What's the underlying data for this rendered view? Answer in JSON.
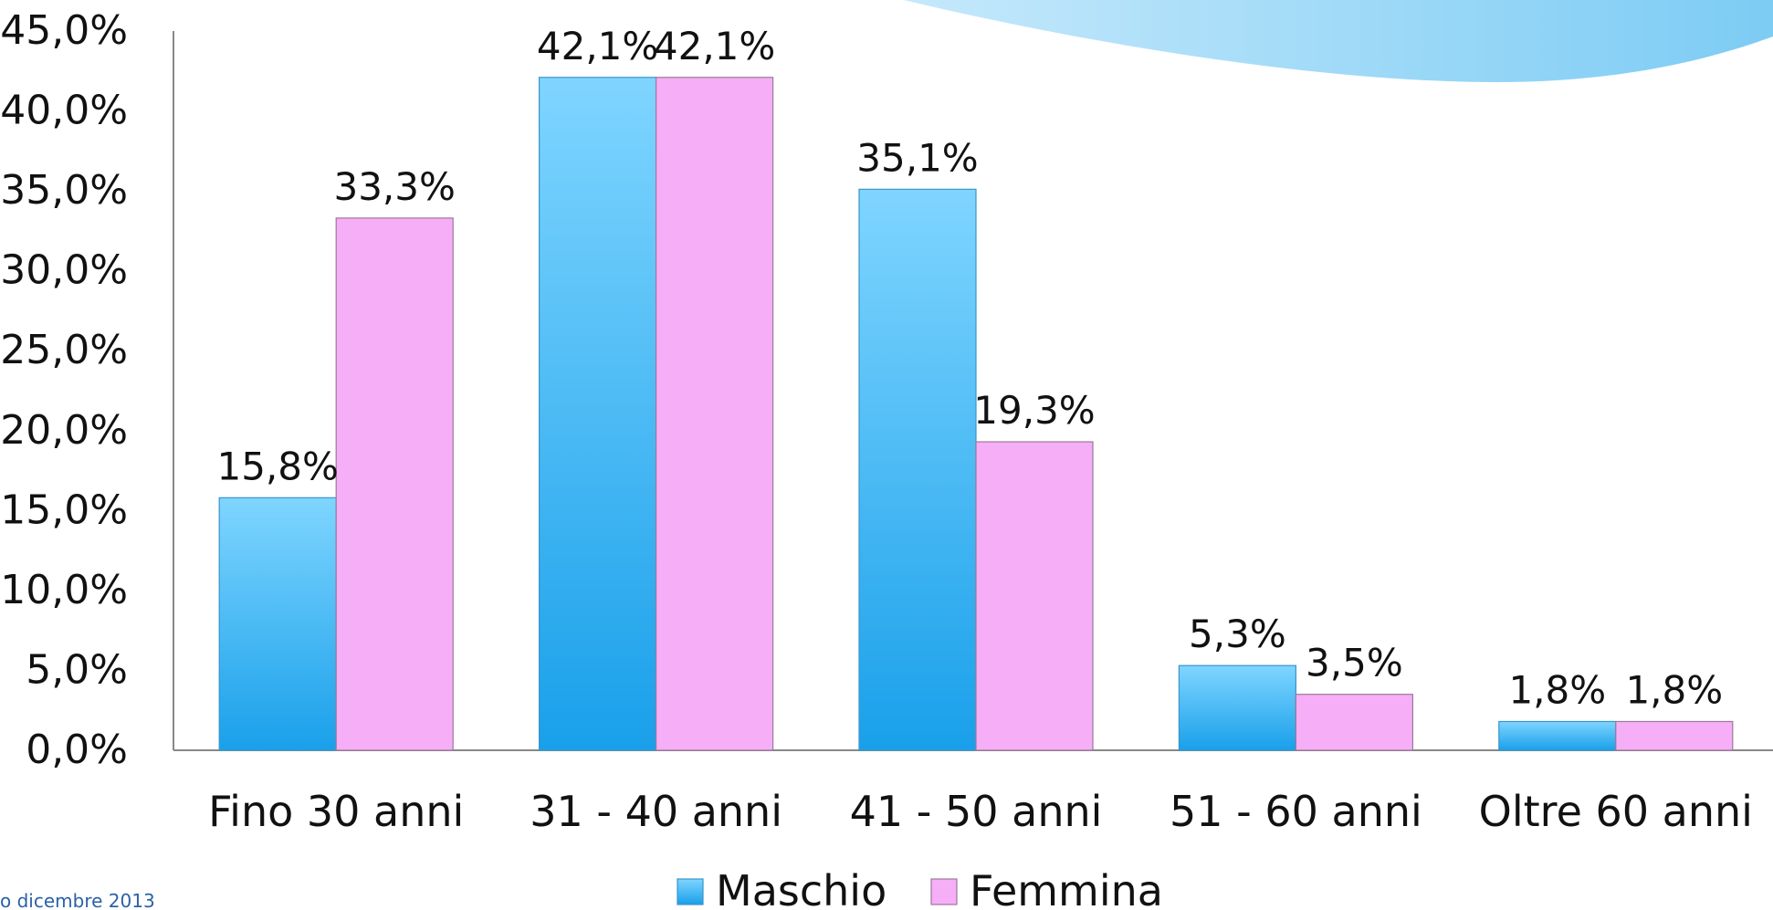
{
  "chart_data": {
    "type": "bar",
    "title": "",
    "xlabel": "",
    "ylabel": "",
    "categories": [
      "Fino 30 anni",
      "31 - 40 anni",
      "41 - 50 anni",
      "51 - 60 anni",
      "Oltre 60 anni"
    ],
    "series": [
      {
        "name": "Maschio",
        "values": [
          15.8,
          42.1,
          35.1,
          5.3,
          1.8
        ],
        "labels": [
          "15,8%",
          "42,1%",
          "35,1%",
          "5,3%",
          "1,8%"
        ],
        "color": "#1ea2ec"
      },
      {
        "name": "Femmina",
        "values": [
          33.3,
          42.1,
          19.3,
          3.5,
          1.8
        ],
        "labels": [
          "33,3%",
          "42,1%",
          "19,3%",
          "3,5%",
          "1,8%"
        ],
        "color": "#f6aef6"
      }
    ],
    "ylim": [
      0,
      45
    ],
    "yticks": [
      0,
      5,
      10,
      15,
      20,
      25,
      30,
      35,
      40,
      45
    ],
    "ytick_labels": [
      "0,0%",
      "5,0%",
      "10,0%",
      "15,0%",
      "20,0%",
      "25,0%",
      "30,0%",
      "35,0%",
      "40,0%",
      "45,0%"
    ],
    "legend": "bottom",
    "grid": false
  },
  "footer": {
    "date_text": "o dicembre 2013"
  },
  "colors": {
    "maschio": "#1ea2ec",
    "femmina": "#f6aef6",
    "axis": "#888888",
    "decor": "#8ecff5"
  }
}
